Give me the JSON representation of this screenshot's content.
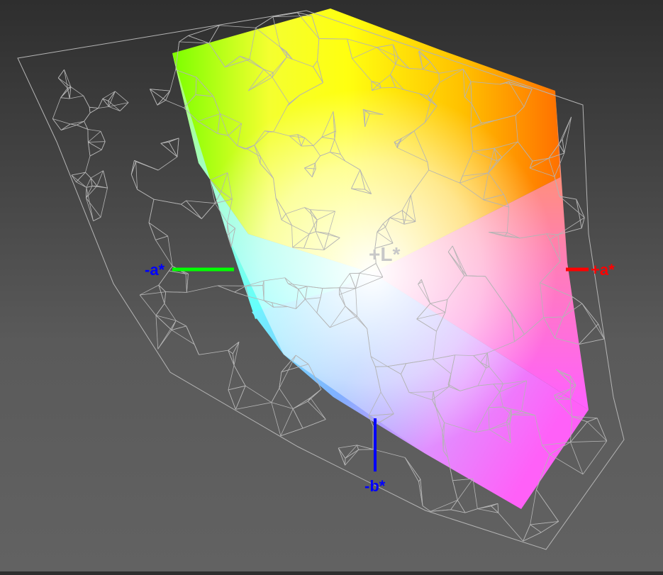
{
  "axes": {
    "plus_l": {
      "label": "+L*",
      "color": "#c8c8c8"
    },
    "minus_a": {
      "label": "-a*",
      "color": "#0000ff",
      "axis_color": "#00ff00"
    },
    "plus_a": {
      "label": "+a*",
      "color": "#ff0000",
      "axis_color": "#ff0000"
    },
    "minus_b": {
      "label": "-b*",
      "color": "#0000ff",
      "axis_color": "#0000ff"
    }
  },
  "colors": {
    "wireframe": "#b4b4b4",
    "yellow": "#ffff00",
    "green": "#80ff00",
    "orange": "#ff7a00",
    "cyan": "#66ffff",
    "magenta": "#ff55ff",
    "blue": "#9f6bff",
    "white": "#ffffff"
  }
}
